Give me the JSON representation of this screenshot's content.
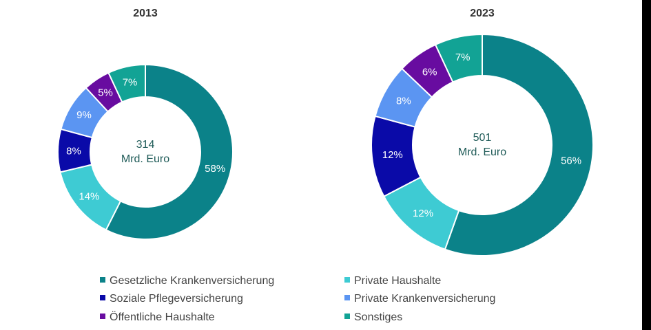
{
  "colors": {
    "gkv": "#0b8289",
    "private_haushalte": "#3ecbd3",
    "spv": "#0a0aa8",
    "pkv": "#5b95f2",
    "oeffentliche": "#680ca0",
    "sonstiges": "#12a395"
  },
  "chart_data": [
    {
      "type": "pie",
      "variant": "donut",
      "title": "2013",
      "center_value": "314",
      "center_unit": "Mrd. Euro",
      "slices": [
        {
          "name": "Gesetzliche Krankenversicherung",
          "value": 58,
          "label": "58%",
          "color_key": "gkv"
        },
        {
          "name": "Private Haushalte",
          "value": 14,
          "label": "14%",
          "color_key": "private_haushalte"
        },
        {
          "name": "Soziale Pflegeversicherung",
          "value": 8,
          "label": "8%",
          "color_key": "spv"
        },
        {
          "name": "Private Krankenversicherung",
          "value": 9,
          "label": "9%",
          "color_key": "pkv"
        },
        {
          "name": "Öffentliche Haushalte",
          "value": 5,
          "label": "5%",
          "color_key": "oeffentliche"
        },
        {
          "name": "Sonstiges",
          "value": 7,
          "label": "7%",
          "color_key": "sonstiges"
        }
      ]
    },
    {
      "type": "pie",
      "variant": "donut",
      "title": "2023",
      "center_value": "501",
      "center_unit": "Mrd. Euro",
      "slices": [
        {
          "name": "Gesetzliche Krankenversicherung",
          "value": 56,
          "label": "56%",
          "color_key": "gkv"
        },
        {
          "name": "Private Haushalte",
          "value": 12,
          "label": "12%",
          "color_key": "private_haushalte"
        },
        {
          "name": "Soziale Pflegeversicherung",
          "value": 12,
          "label": "12%",
          "color_key": "spv"
        },
        {
          "name": "Private Krankenversicherung",
          "value": 8,
          "label": "8%",
          "color_key": "pkv"
        },
        {
          "name": "Öffentliche Haushalte",
          "value": 6,
          "label": "6%",
          "color_key": "oeffentliche"
        },
        {
          "name": "Sonstiges",
          "value": 7,
          "label": "7%",
          "color_key": "sonstiges"
        }
      ]
    }
  ],
  "legend": [
    {
      "label": "Gesetzliche Krankenversicherung",
      "color_key": "gkv"
    },
    {
      "label": "Private Haushalte",
      "color_key": "private_haushalte"
    },
    {
      "label": "Soziale Pflegeversicherung",
      "color_key": "spv"
    },
    {
      "label": "Private Krankenversicherung",
      "color_key": "pkv"
    },
    {
      "label": "Öffentliche Haushalte",
      "color_key": "oeffentliche"
    },
    {
      "label": "Sonstiges",
      "color_key": "sonstiges"
    }
  ]
}
